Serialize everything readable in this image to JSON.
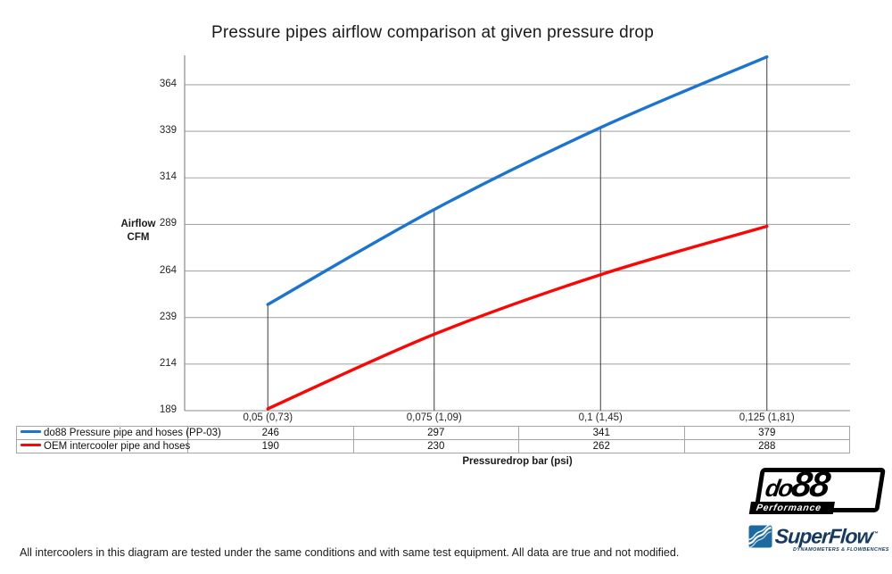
{
  "title": "Pressure pipes airflow comparison at given pressure drop",
  "axes": {
    "ylabel_line1": "Airflow",
    "ylabel_line2": "CFM",
    "xlabel": "Pressuredrop bar (psi)"
  },
  "chart_data": {
    "type": "line",
    "title": "Pressure pipes airflow comparison at given pressure drop",
    "xlabel": "Pressuredrop bar (psi)",
    "ylabel": "Airflow CFM",
    "categories": [
      "0,05 (0,73)",
      "0,075 (1,09)",
      "0,1 (1,45)",
      "0,125 (1,81)"
    ],
    "series": [
      {
        "name": "do88 Pressure pipe and hoses (PP-03)",
        "color": "#1b74cf",
        "values": [
          246,
          297,
          341,
          379
        ]
      },
      {
        "name": "OEM intercooler pipe and hoses",
        "color": "#fb0505",
        "values": [
          190,
          230,
          262,
          288
        ]
      }
    ],
    "yticks": [
      189,
      214,
      239,
      264,
      289,
      314,
      339,
      364
    ],
    "ylim": [
      189,
      380
    ],
    "grid": true,
    "smooth_lines": true,
    "drop_lines": true,
    "legend_position": "table-below"
  },
  "footer": {
    "note": "All intercoolers in this diagram are tested under the same conditions and with same test equipment. All data are true and not modified."
  },
  "logos": {
    "do88": {
      "prefix": "do",
      "digits": "88",
      "tagline": "Performance"
    },
    "superflow": {
      "name": "SuperFlow",
      "tm": "™",
      "tagline": "DYNAMOMETERS & FLOWBENCHES"
    }
  },
  "style_colors": {
    "gridline": "#a8a8a8",
    "axis": "#8c8c8c",
    "drop_line": "#3d3d3d",
    "table_border": "#a6a6a6"
  }
}
